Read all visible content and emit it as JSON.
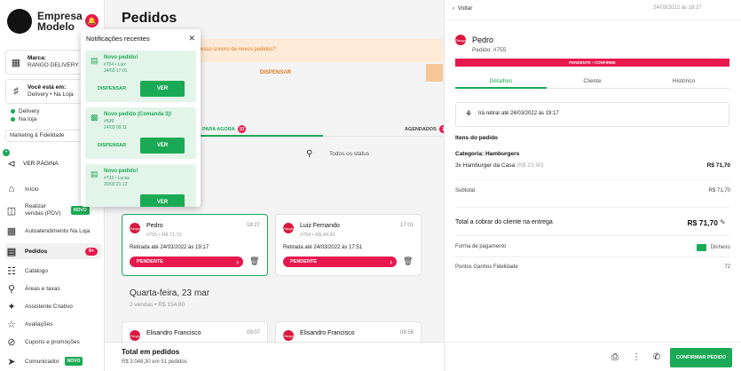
{
  "brand": {
    "name": "Empresa Modelo"
  },
  "sidebar": {
    "store": {
      "label": "Marca:",
      "value": "RANGO DELIVERY"
    },
    "location": {
      "label": "Você está em:",
      "value": "Delivery • Na Loja"
    },
    "status": [
      "Delivery",
      "Na loja"
    ],
    "marketing": "Marketing & Fidelidade",
    "ver_pagina": "VER PÁGINA",
    "nav": [
      {
        "label": "Início",
        "icon": "home-icon"
      },
      {
        "label": "Realizar vendas (PDV)",
        "icon": "register-icon",
        "tag": "NOVO"
      },
      {
        "label": "Autoatendimento Na Loja",
        "icon": "qr-icon"
      },
      {
        "label": "Pedidos",
        "icon": "orders-icon",
        "count": "9+"
      },
      {
        "label": "Catálogo",
        "icon": "catalog-icon"
      },
      {
        "label": "Áreas e taxas",
        "icon": "map-pin-icon"
      },
      {
        "label": "Assistente Criativo",
        "icon": "magic-icon"
      },
      {
        "label": "Avaliações",
        "icon": "star-icon"
      },
      {
        "label": "Cupons e promoções",
        "icon": "coupon-icon"
      },
      {
        "label": "Comunicador",
        "icon": "send-icon",
        "tag": "NOVO"
      }
    ]
  },
  "main": {
    "title": "Pedidos",
    "banner": {
      "text": "esso sonoro de novos pedidos?",
      "button": "DISPENSAR"
    },
    "tabs": [
      {
        "label": "PARA AGORA",
        "count": "10"
      },
      {
        "label": "AGENDADOS",
        "count": "1"
      }
    ],
    "search_placeholder": "",
    "status_filter": "Todos os status",
    "orders": [
      {
        "name": "Pedro",
        "sub": "#755 • R$ 71,70",
        "time": "18:27",
        "pickup": "Retirada até 24/03/2022 às 19:17",
        "status": "PENDENTE"
      },
      {
        "name": "Luiz Fernando",
        "sub": "#754 • R$ 49,90",
        "time": "17:01",
        "pickup": "Retirada até 24/03/2022 às 17:51",
        "status": "PENDENTE"
      }
    ],
    "day": {
      "title": "Quarta-feira, 23 mar",
      "sub": "2 vendas • R$ 154,80"
    },
    "prev_orders": [
      {
        "name": "Elisandro Francisco",
        "time": "09:07"
      },
      {
        "name": "Elisandro Francisco",
        "time": "08:56"
      }
    ],
    "footer": {
      "title": "Total em pedidos",
      "sub": "R$ 3.048,30 em 51 pedidos"
    }
  },
  "notifications": {
    "title": "Notificações recentes",
    "items": [
      {
        "title": "Novo pedido!",
        "line1": "#754 • Luiz",
        "line2": "24/03 17:01",
        "dismiss": "DISPENSAR",
        "action": "VER"
      },
      {
        "title": "Novo pedido (Comanda 3)!",
        "line1": "#539",
        "line2": "24/03 09:11",
        "dismiss": "DISPENSAR",
        "action": "VER"
      },
      {
        "title": "Novo pedido!",
        "line1": "#733 • Lucas",
        "line2": "20/03 21:12",
        "dismiss": "",
        "action": "VER"
      }
    ]
  },
  "detail": {
    "back": "Voltar",
    "date": "24/03/2022 às 18:27",
    "customer": "Pedro",
    "order": "Pedido: #755",
    "status": "PENDENTE • CONFIRME",
    "tabs": [
      "Detalhes",
      "Cliente",
      "Histórico"
    ],
    "pickup": "Irá retirar até 24/03/2022 às 19:17",
    "items_title": "Itens do pedido",
    "category": "Categoria: Hamburgers",
    "item": "3x Hamburger da Casa",
    "item_unit": "(R$ 23,90)",
    "item_price": "R$ 71,70",
    "subtotal_label": "Subtotal",
    "subtotal_value": "R$ 71,70",
    "total_label": "Total a cobrar do cliente na entrega",
    "total_value": "R$ 71,70",
    "payment_label": "Forma de pagamento",
    "payment_value": "Dinheiro",
    "points_label": "Pontos Ganhos Fidelidade",
    "points_value": "72",
    "confirm": "CONFIRMAR PEDIDO"
  },
  "colors": {
    "accent": "#1aaa55",
    "alert": "#e8174d",
    "banner": "#fdebd8"
  }
}
